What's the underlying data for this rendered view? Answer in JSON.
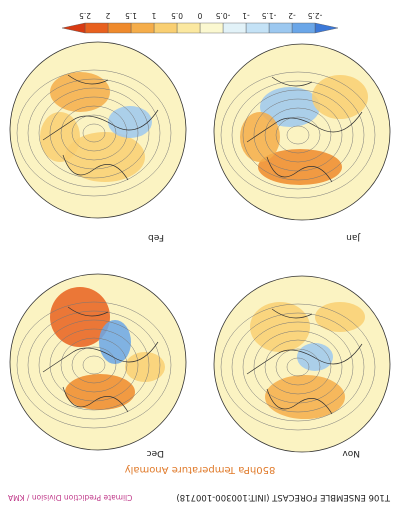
{
  "header": {
    "title": "T106 ENSEMBLE FORECAST (INIT:100300-100718)",
    "credit": "Climate Prediction Division / KMA",
    "subtitle": "850hPa Temperature Anomaly"
  },
  "panels": [
    {
      "label": "Nov"
    },
    {
      "label": "Dec"
    },
    {
      "label": "Jan"
    },
    {
      "label": "Feb"
    }
  ],
  "colorbar": {
    "ticks": [
      -2.5,
      -2,
      -1.5,
      -1,
      -0.5,
      0,
      0.5,
      1,
      1.5,
      2,
      2.5
    ],
    "colors": [
      "#3b78d8",
      "#6aa6e8",
      "#9cc8f0",
      "#c4e2f6",
      "#e2f2f8",
      "#fbf8d0",
      "#fbe8a0",
      "#f9cf72",
      "#f5ad4a",
      "#ef8a2c",
      "#e8601e",
      "#d83a12"
    ]
  }
}
